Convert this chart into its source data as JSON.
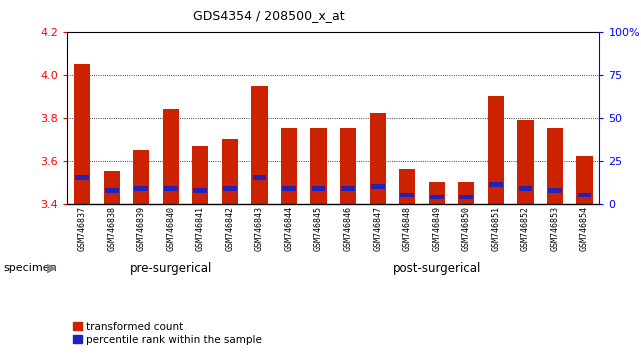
{
  "title": "GDS4354 / 208500_x_at",
  "categories": [
    "GSM746837",
    "GSM746838",
    "GSM746839",
    "GSM746840",
    "GSM746841",
    "GSM746842",
    "GSM746843",
    "GSM746844",
    "GSM746845",
    "GSM746846",
    "GSM746847",
    "GSM746848",
    "GSM746849",
    "GSM746850",
    "GSM746851",
    "GSM746852",
    "GSM746853",
    "GSM746854"
  ],
  "red_values": [
    4.05,
    3.55,
    3.65,
    3.84,
    3.67,
    3.7,
    3.95,
    3.75,
    3.75,
    3.75,
    3.82,
    3.56,
    3.5,
    3.5,
    3.9,
    3.79,
    3.75,
    3.62
  ],
  "blue_values": [
    3.52,
    3.46,
    3.47,
    3.47,
    3.46,
    3.47,
    3.52,
    3.47,
    3.47,
    3.47,
    3.48,
    3.44,
    3.43,
    3.43,
    3.49,
    3.47,
    3.46,
    3.44
  ],
  "ymin": 3.4,
  "ymax": 4.2,
  "y_ticks": [
    3.4,
    3.6,
    3.8,
    4.0,
    4.2
  ],
  "right_yticks": [
    0,
    25,
    50,
    75,
    100
  ],
  "right_yticklabels": [
    "0",
    "25",
    "50",
    "75",
    "100%"
  ],
  "bar_color": "#cc2200",
  "blue_color": "#2222bb",
  "pre_surgical_count": 7,
  "post_surgical_count": 11,
  "group_label_pre": "pre-surgerical",
  "group_label_post": "post-surgerical",
  "specimen_label": "specimen",
  "legend_red": "transformed count",
  "legend_blue": "percentile rank within the sample",
  "pre_surgical_bg": "#ccffcc",
  "post_surgical_bg": "#44dd44",
  "xtick_bg": "#cccccc"
}
